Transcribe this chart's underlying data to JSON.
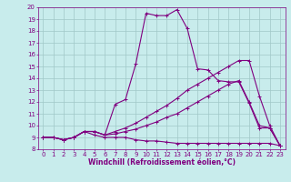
{
  "xlabel": "Windchill (Refroidissement éolien,°C)",
  "bg_color": "#c8ecec",
  "grid_color": "#a0c8c8",
  "line_color": "#800080",
  "xlim": [
    -0.5,
    23.5
  ],
  "ylim": [
    8,
    20
  ],
  "xticks": [
    0,
    1,
    2,
    3,
    4,
    5,
    6,
    7,
    8,
    9,
    10,
    11,
    12,
    13,
    14,
    15,
    16,
    17,
    18,
    19,
    20,
    21,
    22,
    23
  ],
  "yticks": [
    8,
    9,
    10,
    11,
    12,
    13,
    14,
    15,
    16,
    17,
    18,
    19,
    20
  ],
  "line1_x": [
    0,
    1,
    2,
    3,
    4,
    5,
    6,
    7,
    8,
    9,
    10,
    11,
    12,
    13,
    14,
    15,
    16,
    17,
    18,
    19,
    20,
    21,
    22,
    23
  ],
  "line1_y": [
    9.0,
    9.0,
    8.8,
    9.0,
    9.5,
    9.5,
    9.2,
    11.8,
    12.2,
    15.2,
    19.5,
    19.3,
    19.3,
    19.8,
    18.2,
    14.8,
    14.7,
    13.8,
    13.7,
    13.7,
    11.9,
    9.8,
    9.8,
    8.3
  ],
  "line2_x": [
    0,
    1,
    2,
    3,
    4,
    5,
    6,
    7,
    8,
    9,
    10,
    11,
    12,
    13,
    14,
    15,
    16,
    17,
    18,
    19,
    20,
    21,
    22,
    23
  ],
  "line2_y": [
    9.0,
    9.0,
    8.8,
    9.0,
    9.5,
    9.5,
    9.2,
    9.5,
    9.8,
    10.2,
    10.7,
    11.2,
    11.7,
    12.3,
    13.0,
    13.5,
    14.0,
    14.5,
    15.0,
    15.5,
    15.5,
    12.5,
    10.0,
    8.3
  ],
  "line3_x": [
    0,
    1,
    2,
    3,
    4,
    5,
    6,
    7,
    8,
    9,
    10,
    11,
    12,
    13,
    14,
    15,
    16,
    17,
    18,
    19,
    20,
    21,
    22,
    23
  ],
  "line3_y": [
    9.0,
    9.0,
    8.8,
    9.0,
    9.5,
    9.5,
    9.2,
    9.3,
    9.5,
    9.7,
    10.0,
    10.3,
    10.7,
    11.0,
    11.5,
    12.0,
    12.5,
    13.0,
    13.5,
    13.8,
    12.0,
    10.0,
    9.8,
    8.3
  ],
  "line4_x": [
    0,
    1,
    2,
    3,
    4,
    5,
    6,
    7,
    8,
    9,
    10,
    11,
    12,
    13,
    14,
    15,
    16,
    17,
    18,
    19,
    20,
    21,
    22,
    23
  ],
  "line4_y": [
    9.0,
    9.0,
    8.8,
    9.0,
    9.5,
    9.2,
    9.0,
    9.0,
    9.0,
    8.8,
    8.7,
    8.7,
    8.6,
    8.5,
    8.5,
    8.5,
    8.5,
    8.5,
    8.5,
    8.5,
    8.5,
    8.5,
    8.5,
    8.3
  ],
  "marker": "+",
  "marker_size": 3,
  "linewidth": 0.8,
  "label_fontsize": 5.5,
  "tick_fontsize": 5.0
}
